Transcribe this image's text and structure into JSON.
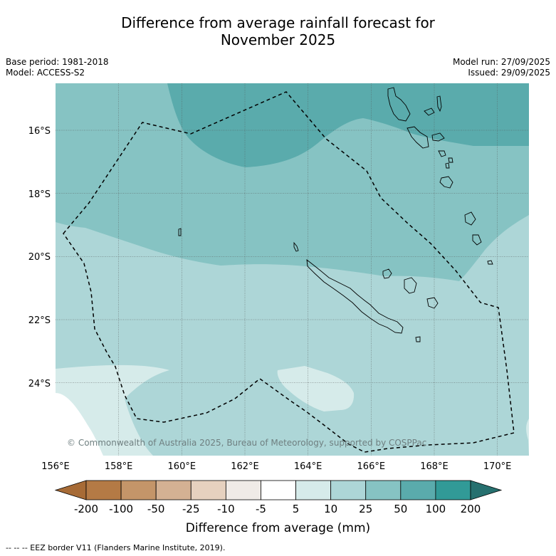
{
  "title_line1": "Difference from average rainfall forecast for",
  "title_line2": "November 2025",
  "base_period": "Base period: 1981-2018",
  "model": "Model: ACCESS-S2",
  "model_run": "Model run: 27/09/2025",
  "issued": "Issued: 29/09/2025",
  "copyright": "© Commonwealth of Australia 2025, Bureau of Meteorology, supported by COSPPac",
  "lat_labels": [
    "16°S",
    "18°S",
    "20°S",
    "22°S",
    "24°S"
  ],
  "lon_labels": [
    "156°E",
    "158°E",
    "160°E",
    "162°E",
    "164°E",
    "166°E",
    "168°E",
    "170°E"
  ],
  "colorbar": {
    "title": "Difference from average (mm)",
    "labels": [
      "-200",
      "-100",
      "-50",
      "-25",
      "-10",
      "-5",
      "5",
      "10",
      "25",
      "50",
      "100",
      "200"
    ],
    "colors": [
      "#a76b36",
      "#b47a45",
      "#c49569",
      "#d4b193",
      "#e6d1bf",
      "#f0ebe7",
      "#ffffff",
      "#d6ebea",
      "#add6d7",
      "#86c3c3",
      "#5aabac",
      "#319a97",
      "#26706f"
    ]
  },
  "footnote": "--  --  -- EEZ border V11 (Flanders Marine Institute, 2019).",
  "colors": {
    "zone_100": "#5aabac",
    "zone_50": "#86c3c3",
    "zone_25": "#add6d7",
    "zone_10": "#d6ebea",
    "zone_5": "#ffffff"
  }
}
